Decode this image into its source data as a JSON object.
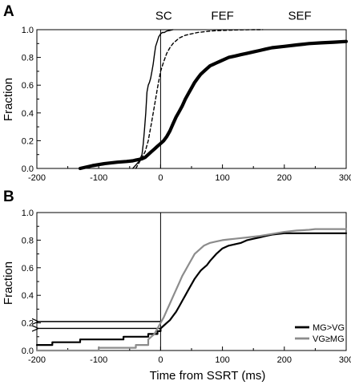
{
  "chart_data": [
    {
      "type": "line",
      "panel_label": "A",
      "xlim": [
        -200,
        300
      ],
      "ylim": [
        0,
        1.0
      ],
      "xticks": [
        "-200",
        "-100",
        "0",
        "100",
        "200",
        "300"
      ],
      "yticks": [
        "0.0",
        "0.2",
        "0.4",
        "0.6",
        "0.8",
        "1.0"
      ],
      "xtick_values": [
        -200,
        -100,
        0,
        100,
        200,
        300
      ],
      "ytick_values": [
        0,
        0.2,
        0.4,
        0.6,
        0.8,
        1.0
      ],
      "xlabel": "",
      "ylabel": "Fraction",
      "grid": false,
      "vline_x": 0,
      "annotations": [
        {
          "text": "SC",
          "x": 5,
          "y": 1.1
        },
        {
          "text": "FEF",
          "x": 100,
          "y": 1.1
        },
        {
          "text": "SEF",
          "x": 225,
          "y": 1.1
        }
      ],
      "series": [
        {
          "name": "SC",
          "style": "solid",
          "width": 1.4,
          "color": "#000000",
          "x": [
            -45,
            -35,
            -30,
            -28,
            -26,
            -24,
            -22,
            -20,
            -18,
            -16,
            -14,
            -12,
            -10,
            -8,
            -5,
            -3,
            0,
            3,
            6,
            10,
            15,
            20
          ],
          "y": [
            0.0,
            0.05,
            0.1,
            0.18,
            0.28,
            0.4,
            0.55,
            0.6,
            0.62,
            0.65,
            0.7,
            0.75,
            0.82,
            0.88,
            0.92,
            0.95,
            0.97,
            0.98,
            0.98,
            0.99,
            0.995,
            1.0
          ]
        },
        {
          "name": "FEF",
          "style": "dashed",
          "width": 1.4,
          "color": "#000000",
          "x": [
            -40,
            -35,
            -30,
            -25,
            -20,
            -15,
            -10,
            -5,
            0,
            5,
            10,
            15,
            20,
            25,
            30,
            40,
            50,
            60,
            80,
            100,
            125,
            150,
            165
          ],
          "y": [
            0.0,
            0.04,
            0.08,
            0.12,
            0.2,
            0.32,
            0.45,
            0.58,
            0.7,
            0.77,
            0.83,
            0.87,
            0.9,
            0.92,
            0.94,
            0.96,
            0.97,
            0.98,
            0.99,
            0.995,
            0.998,
            1.0,
            1.0
          ]
        },
        {
          "name": "SEF",
          "style": "solid",
          "width": 4.2,
          "color": "#000000",
          "x": [
            -130,
            -110,
            -90,
            -70,
            -55,
            -45,
            -40,
            -35,
            -30,
            -25,
            -20,
            -15,
            -10,
            -5,
            0,
            5,
            10,
            15,
            20,
            25,
            30,
            35,
            40,
            45,
            50,
            55,
            60,
            65,
            70,
            75,
            80,
            85,
            90,
            95,
            100,
            110,
            120,
            130,
            140,
            150,
            160,
            170,
            180,
            200,
            220,
            240,
            260,
            280,
            300
          ],
          "y": [
            0.0,
            0.02,
            0.035,
            0.045,
            0.05,
            0.055,
            0.06,
            0.065,
            0.07,
            0.08,
            0.1,
            0.12,
            0.14,
            0.16,
            0.18,
            0.2,
            0.23,
            0.27,
            0.32,
            0.37,
            0.41,
            0.45,
            0.5,
            0.54,
            0.58,
            0.62,
            0.65,
            0.68,
            0.7,
            0.72,
            0.74,
            0.75,
            0.76,
            0.77,
            0.78,
            0.8,
            0.81,
            0.82,
            0.83,
            0.84,
            0.85,
            0.86,
            0.87,
            0.88,
            0.89,
            0.9,
            0.905,
            0.91,
            0.915
          ]
        }
      ]
    },
    {
      "type": "line",
      "panel_label": "B",
      "xlim": [
        -200,
        300
      ],
      "ylim": [
        0,
        1.0
      ],
      "xticks": [
        "-200",
        "-100",
        "0",
        "100",
        "200",
        "300"
      ],
      "yticks": [
        "0.0",
        "0.2",
        "0.4",
        "0.6",
        "0.8",
        "1.0"
      ],
      "xtick_values": [
        -200,
        -100,
        0,
        100,
        200,
        300
      ],
      "ytick_values": [
        0,
        0.2,
        0.4,
        0.6,
        0.8,
        1.0
      ],
      "xlabel": "Time from SSRT (ms)",
      "ylabel": "Fraction",
      "grid": false,
      "vline_x": 0,
      "legend_position": "bottom-right",
      "arrows": [
        {
          "y": 0.21,
          "x_from": 0,
          "x_to": -200
        },
        {
          "y": 0.16,
          "x_from": 0,
          "x_to": -200
        }
      ],
      "series": [
        {
          "name": "MG>VG",
          "style": "solid",
          "width": 2.2,
          "color": "#000000",
          "x": [
            -200,
            -175,
            -175,
            -130,
            -130,
            -60,
            -60,
            -20,
            -20,
            -5,
            -5,
            0,
            0,
            5,
            10,
            15,
            20,
            25,
            30,
            35,
            40,
            45,
            50,
            55,
            60,
            65,
            70,
            75,
            80,
            90,
            100,
            110,
            120,
            130,
            140,
            150,
            160,
            170,
            180,
            190,
            200,
            250,
            300
          ],
          "y": [
            0.04,
            0.04,
            0.06,
            0.06,
            0.08,
            0.08,
            0.1,
            0.1,
            0.12,
            0.12,
            0.14,
            0.14,
            0.16,
            0.18,
            0.2,
            0.22,
            0.25,
            0.28,
            0.32,
            0.36,
            0.4,
            0.44,
            0.48,
            0.52,
            0.55,
            0.58,
            0.6,
            0.62,
            0.65,
            0.7,
            0.74,
            0.76,
            0.77,
            0.78,
            0.8,
            0.81,
            0.82,
            0.83,
            0.84,
            0.845,
            0.85,
            0.85,
            0.85
          ]
        },
        {
          "name": "VG≥MG",
          "style": "solid",
          "width": 2.2,
          "color": "#8c8c8c",
          "x": [
            -200,
            -100,
            -100,
            -40,
            -40,
            -20,
            -20,
            -10,
            -5,
            0,
            5,
            10,
            15,
            20,
            25,
            30,
            35,
            40,
            45,
            50,
            55,
            60,
            65,
            70,
            80,
            90,
            100,
            110,
            120,
            140,
            160,
            180,
            200,
            220,
            240,
            250,
            300
          ],
          "y": [
            0.0,
            0.0,
            0.02,
            0.02,
            0.04,
            0.04,
            0.08,
            0.12,
            0.16,
            0.2,
            0.24,
            0.29,
            0.34,
            0.39,
            0.44,
            0.49,
            0.54,
            0.58,
            0.62,
            0.66,
            0.7,
            0.72,
            0.74,
            0.76,
            0.78,
            0.79,
            0.8,
            0.805,
            0.81,
            0.82,
            0.83,
            0.845,
            0.86,
            0.87,
            0.875,
            0.88,
            0.88
          ]
        }
      ]
    }
  ]
}
